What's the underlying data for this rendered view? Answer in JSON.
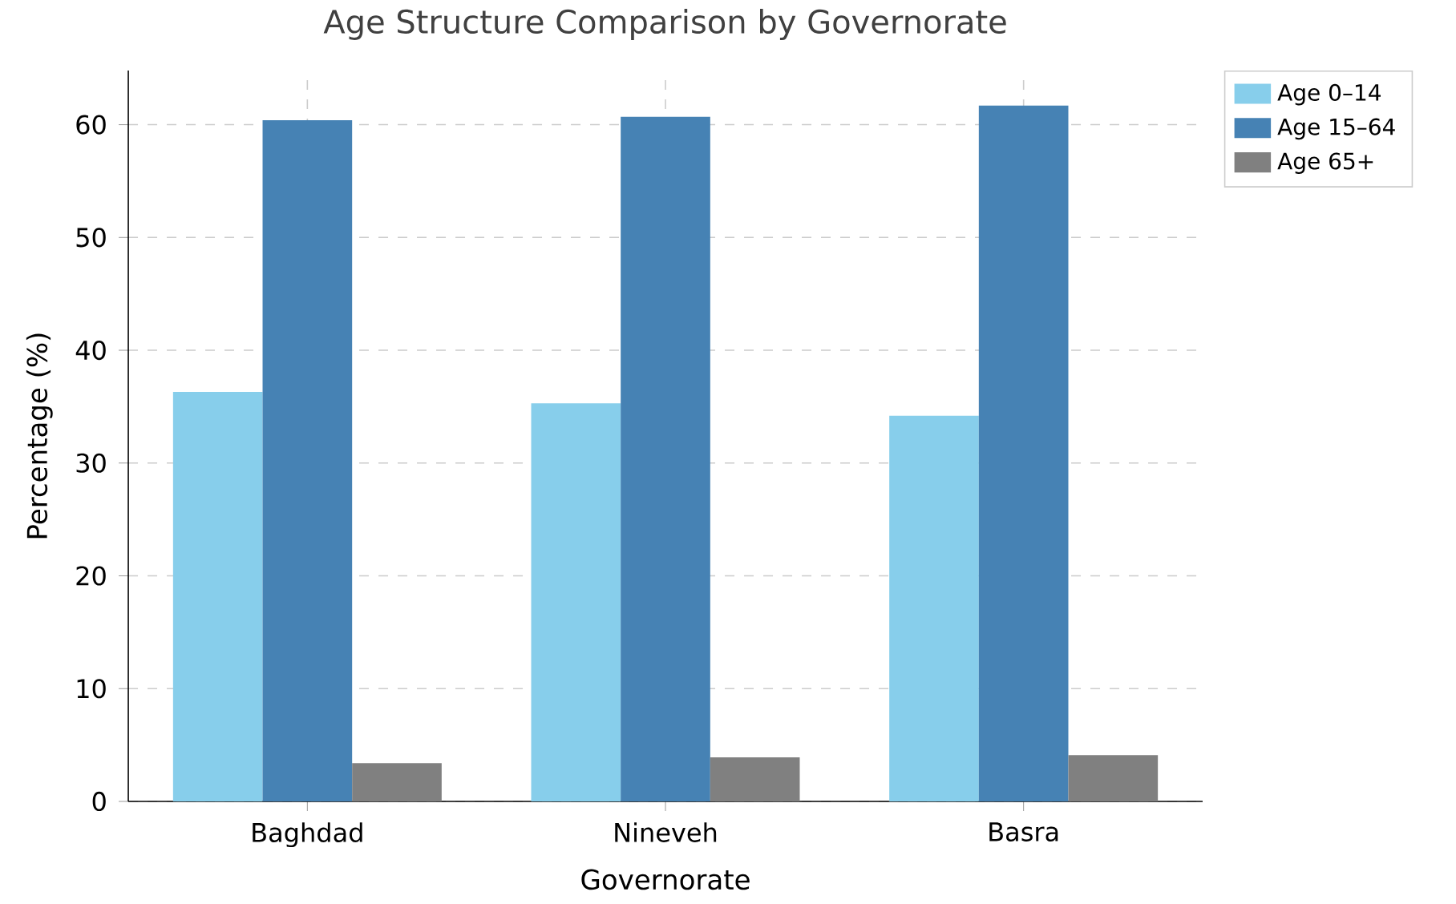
{
  "chart_data": {
    "type": "bar",
    "title": "Age Structure Comparison by Governorate",
    "xlabel": "Governorate",
    "ylabel": "Percentage (%)",
    "categories": [
      "Baghdad",
      "Nineveh",
      "Basra"
    ],
    "series": [
      {
        "name": "Age 0–14",
        "color": "#87ceeb",
        "values": [
          36.3,
          35.3,
          34.2
        ]
      },
      {
        "name": "Age 15–64",
        "color": "#4682b4",
        "values": [
          60.4,
          60.7,
          61.7
        ]
      },
      {
        "name": "Age 65+",
        "color": "#808080",
        "values": [
          3.4,
          3.9,
          4.1
        ]
      }
    ],
    "ylim": [
      0,
      64.8
    ],
    "yticks": [
      0,
      10,
      20,
      30,
      40,
      50,
      60
    ],
    "grid": true,
    "legend": "top right"
  }
}
